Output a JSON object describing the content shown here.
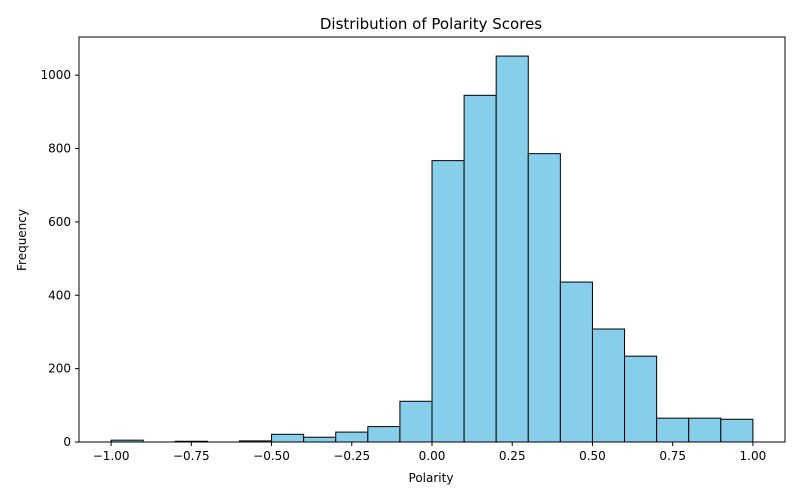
{
  "chart_data": {
    "type": "bar",
    "title": "Distribution of Polarity Scores",
    "xlabel": "Polarity",
    "ylabel": "Frequency",
    "bins": [
      {
        "x0": -1.0,
        "x1": -0.9,
        "value": 5
      },
      {
        "x0": -0.9,
        "x1": -0.8,
        "value": 0
      },
      {
        "x0": -0.8,
        "x1": -0.7,
        "value": 2
      },
      {
        "x0": -0.7,
        "x1": -0.6,
        "value": 0
      },
      {
        "x0": -0.6,
        "x1": -0.5,
        "value": 3
      },
      {
        "x0": -0.5,
        "x1": -0.4,
        "value": 21
      },
      {
        "x0": -0.4,
        "x1": -0.3,
        "value": 13
      },
      {
        "x0": -0.3,
        "x1": -0.2,
        "value": 27
      },
      {
        "x0": -0.2,
        "x1": -0.1,
        "value": 42
      },
      {
        "x0": -0.1,
        "x1": 0.0,
        "value": 111
      },
      {
        "x0": 0.0,
        "x1": 0.1,
        "value": 767
      },
      {
        "x0": 0.1,
        "x1": 0.2,
        "value": 945
      },
      {
        "x0": 0.2,
        "x1": 0.3,
        "value": 1052
      },
      {
        "x0": 0.3,
        "x1": 0.4,
        "value": 786
      },
      {
        "x0": 0.4,
        "x1": 0.5,
        "value": 436
      },
      {
        "x0": 0.5,
        "x1": 0.6,
        "value": 308
      },
      {
        "x0": 0.6,
        "x1": 0.7,
        "value": 234
      },
      {
        "x0": 0.7,
        "x1": 0.8,
        "value": 65
      },
      {
        "x0": 0.8,
        "x1": 0.9,
        "value": 65
      },
      {
        "x0": 0.9,
        "x1": 1.0,
        "value": 62
      }
    ],
    "xlim": [
      -1.1,
      1.1
    ],
    "ylim": [
      0,
      1104
    ],
    "xticks": [
      -1.0,
      -0.75,
      -0.5,
      -0.25,
      0.0,
      0.25,
      0.5,
      0.75,
      1.0
    ],
    "xtick_labels": [
      "−1.00",
      "−0.75",
      "−0.50",
      "−0.25",
      "0.00",
      "0.25",
      "0.50",
      "0.75",
      "1.00"
    ],
    "yticks": [
      0,
      200,
      400,
      600,
      800,
      1000
    ],
    "ytick_labels": [
      "0",
      "200",
      "400",
      "600",
      "800",
      "1000"
    ],
    "bar_color": "#87ceeb",
    "edge_color": "#000000",
    "grid": false,
    "legend": "none"
  }
}
